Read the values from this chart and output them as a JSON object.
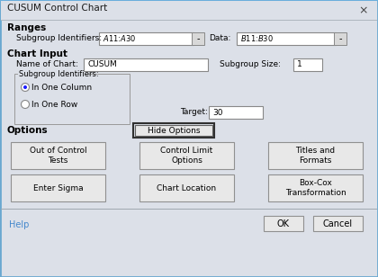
{
  "title": "CUSUM Control Chart",
  "bg_color": "#dce0e8",
  "dialog_bg": "#dce0e8",
  "title_bar_bg": "#dce0e8",
  "title_bar_blue": "#4a90c8",
  "white": "#ffffff",
  "field_bg": "#f5f5f5",
  "button_bg": "#e8e8e8",
  "dark_border": "#a0a0a0",
  "light_border": "#ffffff",
  "text_color": "#000000",
  "blue_text": "#4488cc",
  "sections": {
    "ranges_label": "Ranges",
    "chart_input_label": "Chart Input",
    "options_label": "Options"
  },
  "fields": {
    "subgroup_id_label": "Subgroup Identifiers:",
    "subgroup_id_value": "$A$11:$A$30",
    "data_label": "Data:",
    "data_value": "$B$11:$B$30",
    "name_label": "Name of Chart:",
    "name_value": "CUSUM",
    "subgroup_size_label": "Subgroup Size:",
    "subgroup_size_value": "1",
    "target_label": "Target:",
    "target_value": "30"
  },
  "radio_group_label": "Subgroup Identifiers:",
  "radio1": "In One Column",
  "radio2": "In One Row",
  "hide_options_btn": "Hide Options",
  "buttons_row1": [
    "Out of Control\nTests",
    "Control Limit\nOptions",
    "Titles and\nFormats"
  ],
  "buttons_row2": [
    "Enter Sigma",
    "Chart Location",
    "Box-Cox\nTransformation"
  ],
  "bottom_buttons": [
    "Help",
    "OK",
    "Cancel"
  ]
}
